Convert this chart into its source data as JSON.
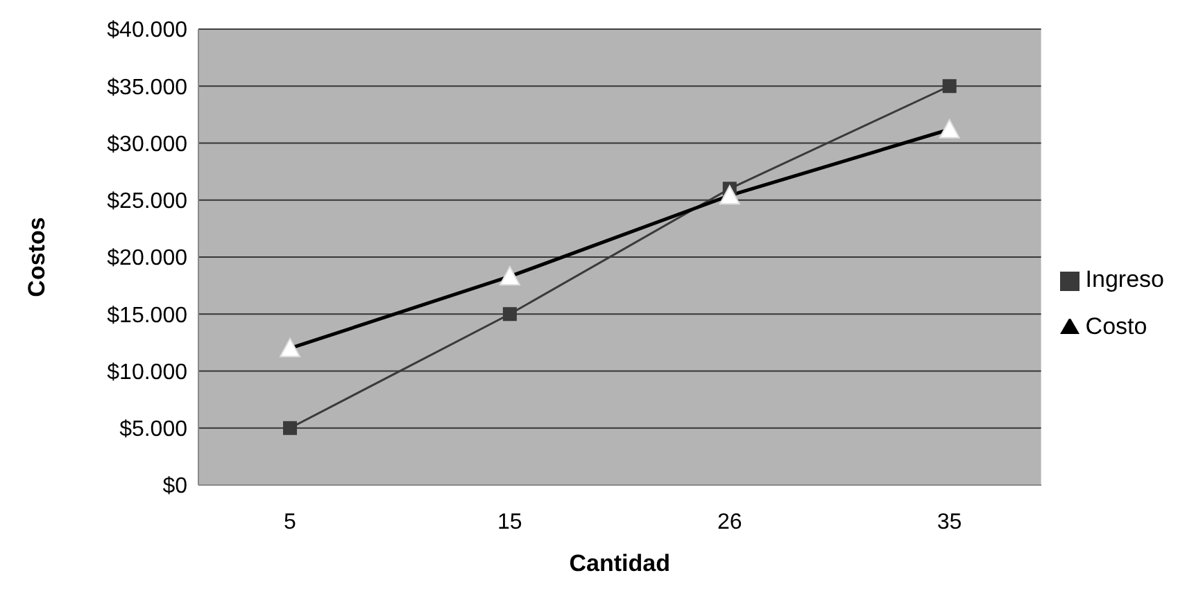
{
  "chart_data": {
    "type": "line",
    "xlabel": "Cantidad",
    "ylabel": "Costos",
    "categories": [
      "5",
      "15",
      "26",
      "35"
    ],
    "series": [
      {
        "name": "Ingreso",
        "color": "#3a3a3a",
        "marker": "square",
        "values": [
          5000,
          15000,
          26000,
          35000
        ]
      },
      {
        "name": "Costo",
        "color": "#000000",
        "marker": "triangle",
        "values": [
          12000,
          18300,
          25400,
          31200
        ]
      }
    ],
    "ylim": [
      0,
      40000
    ],
    "yticks": [
      {
        "value": 0,
        "label": "$0"
      },
      {
        "value": 5000,
        "label": "$5.000"
      },
      {
        "value": 10000,
        "label": "$10.000"
      },
      {
        "value": 15000,
        "label": "$15.000"
      },
      {
        "value": 20000,
        "label": "$20.000"
      },
      {
        "value": 25000,
        "label": "$25.000"
      },
      {
        "value": 30000,
        "label": "$30.000"
      },
      {
        "value": 35000,
        "label": "$35.000"
      },
      {
        "value": 40000,
        "label": "$40.000"
      }
    ],
    "grid": "y",
    "legend": "right",
    "line_style": "solid"
  }
}
